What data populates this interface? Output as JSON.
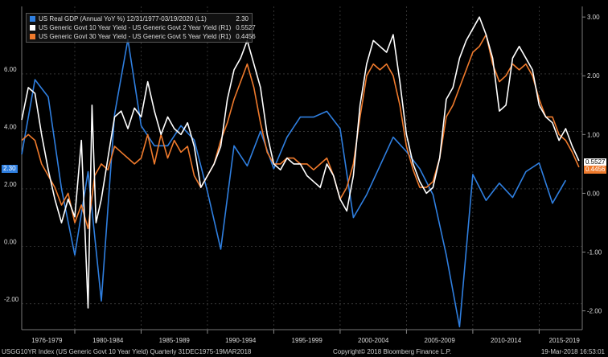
{
  "chart_data": {
    "type": "line",
    "legend_position": "top-left",
    "grid": true,
    "x_range": [
      1976.0,
      2018.25
    ],
    "x_ticks": [
      {
        "label": "1976-1979",
        "center": 1977.9
      },
      {
        "label": "1980-1984",
        "center": 1982.5
      },
      {
        "label": "1985-1989",
        "center": 1987.5
      },
      {
        "label": "1990-1994",
        "center": 1992.5
      },
      {
        "label": "1995-1999",
        "center": 1997.5
      },
      {
        "label": "2000-2004",
        "center": 2002.5
      },
      {
        "label": "2005-2009",
        "center": 2007.5
      },
      {
        "label": "2010-2014",
        "center": 2012.5
      },
      {
        "label": "2015-2019",
        "center": 2016.9
      }
    ],
    "left_axis": {
      "ylim": [
        -2.9,
        8.35
      ],
      "ticks": [
        -2.0,
        0.0,
        2.0,
        4.0,
        6.0
      ],
      "tick_labels": [
        "-2.00",
        "0.00",
        "2.00",
        "4.00",
        "6.00"
      ]
    },
    "right_axis": {
      "ylim": [
        -2.32,
        3.18
      ],
      "ticks": [
        -2.0,
        -1.0,
        0.0,
        1.0,
        2.0,
        3.0
      ],
      "tick_labels": [
        "-2.00",
        "-1.00",
        "0.00",
        "1.00",
        "2.00",
        "3.00"
      ]
    },
    "series": [
      {
        "name": "US Real GDP (Annual YoY %) 12/31/1977-03/19/2020 (L1)",
        "last": "2.30",
        "color": "#2f7fe0",
        "axis": "left",
        "points": [
          [
            1976.0,
            3.2
          ],
          [
            1977.0,
            5.8
          ],
          [
            1978.0,
            5.2
          ],
          [
            1979.0,
            2.0
          ],
          [
            1980.0,
            -0.3
          ],
          [
            1981.0,
            2.6
          ],
          [
            1982.0,
            -1.9
          ],
          [
            1983.0,
            4.6
          ],
          [
            1984.0,
            7.2
          ],
          [
            1985.0,
            4.2
          ],
          [
            1986.0,
            3.5
          ],
          [
            1987.0,
            3.5
          ],
          [
            1988.0,
            4.2
          ],
          [
            1989.0,
            3.7
          ],
          [
            1990.0,
            1.9
          ],
          [
            1991.0,
            -0.1
          ],
          [
            1992.0,
            3.5
          ],
          [
            1993.0,
            2.8
          ],
          [
            1994.0,
            4.0
          ],
          [
            1995.0,
            2.7
          ],
          [
            1996.0,
            3.8
          ],
          [
            1997.0,
            4.5
          ],
          [
            1998.0,
            4.5
          ],
          [
            1999.0,
            4.7
          ],
          [
            2000.0,
            4.1
          ],
          [
            2001.0,
            1.0
          ],
          [
            2002.0,
            1.8
          ],
          [
            2003.0,
            2.8
          ],
          [
            2004.0,
            3.8
          ],
          [
            2005.0,
            3.3
          ],
          [
            2006.0,
            2.7
          ],
          [
            2007.0,
            1.8
          ],
          [
            2008.0,
            -0.3
          ],
          [
            2009.0,
            -2.8
          ],
          [
            2010.0,
            2.5
          ],
          [
            2011.0,
            1.6
          ],
          [
            2012.0,
            2.2
          ],
          [
            2013.0,
            1.7
          ],
          [
            2014.0,
            2.6
          ],
          [
            2015.0,
            2.9
          ],
          [
            2016.0,
            1.5
          ],
          [
            2017.0,
            2.3
          ]
        ]
      },
      {
        "name": "US Generic Govt 10 Year Yield - US Generic Govt 2 Year Yield (R1)",
        "last": "0.5527",
        "color": "#ffffff",
        "axis": "right",
        "points": [
          [
            1976.0,
            1.25
          ],
          [
            1976.5,
            1.8
          ],
          [
            1977.0,
            1.7
          ],
          [
            1977.5,
            1.0
          ],
          [
            1978.0,
            0.4
          ],
          [
            1978.5,
            -0.1
          ],
          [
            1979.0,
            -0.5
          ],
          [
            1979.5,
            -0.1
          ],
          [
            1980.0,
            -0.4
          ],
          [
            1980.5,
            0.9
          ],
          [
            1981.0,
            -1.95
          ],
          [
            1981.3,
            1.5
          ],
          [
            1981.6,
            -0.5
          ],
          [
            1982.0,
            -0.1
          ],
          [
            1982.5,
            0.6
          ],
          [
            1983.0,
            1.3
          ],
          [
            1983.5,
            1.4
          ],
          [
            1984.0,
            1.1
          ],
          [
            1984.5,
            1.45
          ],
          [
            1985.0,
            1.3
          ],
          [
            1985.5,
            1.9
          ],
          [
            1986.0,
            1.4
          ],
          [
            1986.5,
            1.0
          ],
          [
            1987.0,
            1.3
          ],
          [
            1987.5,
            1.1
          ],
          [
            1988.0,
            1.0
          ],
          [
            1988.5,
            1.2
          ],
          [
            1989.0,
            0.8
          ],
          [
            1989.5,
            0.1
          ],
          [
            1990.0,
            0.3
          ],
          [
            1990.5,
            0.5
          ],
          [
            1991.0,
            0.8
          ],
          [
            1991.5,
            1.6
          ],
          [
            1992.0,
            2.1
          ],
          [
            1992.5,
            2.3
          ],
          [
            1993.0,
            2.6
          ],
          [
            1993.5,
            2.2
          ],
          [
            1994.0,
            1.8
          ],
          [
            1994.5,
            1.0
          ],
          [
            1995.0,
            0.5
          ],
          [
            1995.5,
            0.4
          ],
          [
            1996.0,
            0.6
          ],
          [
            1996.5,
            0.5
          ],
          [
            1997.0,
            0.5
          ],
          [
            1997.5,
            0.3
          ],
          [
            1998.0,
            0.2
          ],
          [
            1998.5,
            0.1
          ],
          [
            1999.0,
            0.5
          ],
          [
            1999.5,
            0.3
          ],
          [
            2000.0,
            -0.1
          ],
          [
            2000.5,
            -0.3
          ],
          [
            2001.0,
            0.3
          ],
          [
            2001.5,
            1.5
          ],
          [
            2002.0,
            2.2
          ],
          [
            2002.5,
            2.6
          ],
          [
            2003.0,
            2.5
          ],
          [
            2003.5,
            2.4
          ],
          [
            2004.0,
            2.7
          ],
          [
            2004.5,
            1.9
          ],
          [
            2005.0,
            1.0
          ],
          [
            2005.5,
            0.5
          ],
          [
            2006.0,
            0.2
          ],
          [
            2006.5,
            0.0
          ],
          [
            2007.0,
            0.1
          ],
          [
            2007.5,
            0.6
          ],
          [
            2008.0,
            1.6
          ],
          [
            2008.5,
            1.8
          ],
          [
            2009.0,
            2.3
          ],
          [
            2009.5,
            2.6
          ],
          [
            2010.0,
            2.8
          ],
          [
            2010.5,
            3.0
          ],
          [
            2011.0,
            2.7
          ],
          [
            2011.5,
            2.3
          ],
          [
            2012.0,
            1.4
          ],
          [
            2012.5,
            1.5
          ],
          [
            2013.0,
            2.3
          ],
          [
            2013.5,
            2.5
          ],
          [
            2014.0,
            2.3
          ],
          [
            2014.5,
            2.1
          ],
          [
            2015.0,
            1.5
          ],
          [
            2015.5,
            1.3
          ],
          [
            2016.0,
            1.2
          ],
          [
            2016.5,
            0.9
          ],
          [
            2017.0,
            1.1
          ],
          [
            2017.5,
            0.8
          ],
          [
            2018.0,
            0.5527
          ]
        ]
      },
      {
        "name": "US Generic Govt 30 Year Yield - US Generic Govt 5 Year Yield (R1)",
        "last": "0.4456",
        "color": "#ef7a2c",
        "axis": "right",
        "points": [
          [
            1976.0,
            0.9
          ],
          [
            1976.5,
            1.0
          ],
          [
            1977.0,
            0.9
          ],
          [
            1977.5,
            0.5
          ],
          [
            1978.0,
            0.3
          ],
          [
            1978.5,
            0.1
          ],
          [
            1979.0,
            -0.2
          ],
          [
            1979.5,
            0.0
          ],
          [
            1980.0,
            -0.5
          ],
          [
            1980.5,
            -0.2
          ],
          [
            1981.0,
            -0.6
          ],
          [
            1981.5,
            0.3
          ],
          [
            1982.0,
            0.5
          ],
          [
            1982.5,
            0.4
          ],
          [
            1983.0,
            0.8
          ],
          [
            1983.5,
            0.7
          ],
          [
            1984.0,
            0.6
          ],
          [
            1984.5,
            0.5
          ],
          [
            1985.0,
            0.6
          ],
          [
            1985.5,
            1.0
          ],
          [
            1986.0,
            0.5
          ],
          [
            1986.5,
            1.0
          ],
          [
            1987.0,
            0.6
          ],
          [
            1987.5,
            0.9
          ],
          [
            1988.0,
            0.7
          ],
          [
            1988.5,
            0.8
          ],
          [
            1989.0,
            0.3
          ],
          [
            1989.5,
            0.1
          ],
          [
            1990.0,
            0.3
          ],
          [
            1990.5,
            0.5
          ],
          [
            1991.0,
            0.9
          ],
          [
            1991.5,
            1.2
          ],
          [
            1992.0,
            1.6
          ],
          [
            1992.5,
            1.9
          ],
          [
            1993.0,
            2.2
          ],
          [
            1993.5,
            1.8
          ],
          [
            1994.0,
            1.2
          ],
          [
            1994.5,
            0.7
          ],
          [
            1995.0,
            0.5
          ],
          [
            1995.5,
            0.5
          ],
          [
            1996.0,
            0.6
          ],
          [
            1996.5,
            0.6
          ],
          [
            1997.0,
            0.5
          ],
          [
            1997.5,
            0.5
          ],
          [
            1998.0,
            0.4
          ],
          [
            1998.5,
            0.5
          ],
          [
            1999.0,
            0.6
          ],
          [
            1999.5,
            0.3
          ],
          [
            2000.0,
            -0.1
          ],
          [
            2000.5,
            0.1
          ],
          [
            2001.0,
            0.5
          ],
          [
            2001.5,
            1.3
          ],
          [
            2002.0,
            2.0
          ],
          [
            2002.5,
            2.2
          ],
          [
            2003.0,
            2.1
          ],
          [
            2003.5,
            2.2
          ],
          [
            2004.0,
            2.0
          ],
          [
            2004.5,
            1.5
          ],
          [
            2005.0,
            0.8
          ],
          [
            2005.5,
            0.4
          ],
          [
            2006.0,
            0.1
          ],
          [
            2006.5,
            0.1
          ],
          [
            2007.0,
            0.2
          ],
          [
            2007.5,
            0.6
          ],
          [
            2008.0,
            1.3
          ],
          [
            2008.5,
            1.5
          ],
          [
            2009.0,
            1.8
          ],
          [
            2009.5,
            2.1
          ],
          [
            2010.0,
            2.4
          ],
          [
            2010.5,
            2.5
          ],
          [
            2011.0,
            2.7
          ],
          [
            2011.5,
            2.2
          ],
          [
            2012.0,
            1.9
          ],
          [
            2012.5,
            2.0
          ],
          [
            2013.0,
            2.2
          ],
          [
            2013.5,
            2.1
          ],
          [
            2014.0,
            2.2
          ],
          [
            2014.5,
            2.0
          ],
          [
            2015.0,
            1.6
          ],
          [
            2015.5,
            1.3
          ],
          [
            2016.0,
            1.3
          ],
          [
            2016.5,
            1.0
          ],
          [
            2017.0,
            0.9
          ],
          [
            2017.5,
            0.7
          ],
          [
            2018.0,
            0.4456
          ]
        ]
      }
    ]
  },
  "left_tag": "2.30",
  "right_tags": [
    "0.5527",
    "0.4456"
  ],
  "footer": {
    "left": "USGG10YR Index (US Generic Govt 10 Year Yield)  Quarterly 31DEC1975-19MAR2018",
    "center": "Copyright© 2018 Bloomberg Finance L.P.",
    "right": "19-Mar-2018 16:53:01"
  }
}
